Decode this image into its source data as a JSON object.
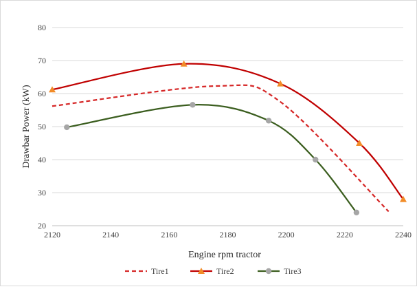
{
  "chart_data": {
    "type": "line",
    "title": "",
    "xlabel": "Engine rpm tractor",
    "ylabel": "Drawbar Power (kW)",
    "xlim": [
      2120,
      2240
    ],
    "ylim": [
      20,
      80
    ],
    "xticks": [
      2120,
      2140,
      2160,
      2180,
      2200,
      2220,
      2240
    ],
    "yticks": [
      20,
      30,
      40,
      50,
      60,
      70,
      80
    ],
    "grid": "horizontal major gridlines",
    "legend": "bottom-center",
    "series": [
      {
        "name": "Tire1",
        "color": "#d62828",
        "style": "dashed",
        "marker": "none",
        "points": [
          [
            2120,
            56.2
          ],
          [
            2176,
            62.3
          ],
          [
            2198,
            57.5
          ],
          [
            2235,
            24.3
          ]
        ]
      },
      {
        "name": "Tire2",
        "color": "#c00000",
        "marker_color": "#f28c28",
        "style": "solid",
        "marker": "triangle",
        "points": [
          [
            2120,
            61.2
          ],
          [
            2165,
            69.0
          ],
          [
            2198,
            63.0
          ],
          [
            2225,
            45.0
          ],
          [
            2240,
            28.0
          ]
        ]
      },
      {
        "name": "Tire3",
        "color": "#3b5e1f",
        "marker_color": "#a6a6a6",
        "style": "solid",
        "marker": "circle",
        "points": [
          [
            2125,
            49.8
          ],
          [
            2168,
            56.6
          ],
          [
            2194,
            51.8
          ],
          [
            2210,
            40.0
          ],
          [
            2224,
            24.0
          ]
        ]
      }
    ]
  }
}
